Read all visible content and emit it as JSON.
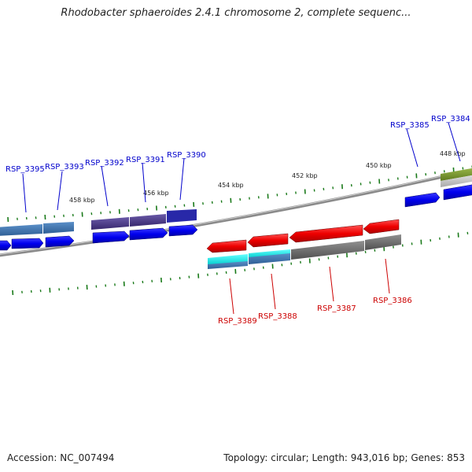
{
  "title": "Rhodobacter sphaeroides 2.4.1 chromosome 2, complete sequenc...",
  "footer": {
    "accession": "Accession: NC_007494",
    "summary": "Topology: circular; Length: 943,016 bp; Genes: 853"
  },
  "colors": {
    "forward_gene_label": "#0000cc",
    "reverse_gene_label": "#cc0000",
    "tick": "#1a7a1a",
    "backbone": "#888888"
  },
  "scale_labels": [
    "458 kbp",
    "456 kbp",
    "454 kbp",
    "452 kbp",
    "450 kbp",
    "448 kbp"
  ],
  "genes": [
    {
      "label": "RSP_3395",
      "strand": "forward"
    },
    {
      "label": "RSP_3393",
      "strand": "forward"
    },
    {
      "label": "RSP_3392",
      "strand": "forward"
    },
    {
      "label": "RSP_3391",
      "strand": "forward"
    },
    {
      "label": "RSP_3390",
      "strand": "forward"
    },
    {
      "label": "RSP_3385",
      "strand": "forward"
    },
    {
      "label": "RSP_3384",
      "strand": "forward"
    },
    {
      "label": "RSP_3389",
      "strand": "reverse"
    },
    {
      "label": "RSP_3388",
      "strand": "reverse"
    },
    {
      "label": "RSP_3387",
      "strand": "reverse"
    },
    {
      "label": "RSP_3386",
      "strand": "reverse"
    }
  ]
}
